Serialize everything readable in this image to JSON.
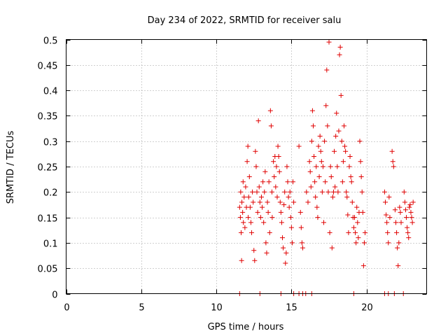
{
  "chart_data": {
    "type": "scatter",
    "title": "Day 234 of 2022, SRMTID for receiver salu",
    "xlabel": "GPS time / hours",
    "ylabel": "SRMTID / TECUs",
    "xlim": [
      0,
      24
    ],
    "ylim": [
      0,
      0.5
    ],
    "xticks": [
      0,
      5,
      10,
      15,
      20
    ],
    "yticks": [
      0,
      0.05,
      0.1,
      0.15,
      0.2,
      0.25,
      0.3,
      0.35,
      0.4,
      0.45,
      0.5
    ],
    "xtick_labels": [
      "0",
      "5",
      "10",
      "15",
      "20"
    ],
    "ytick_labels": [
      "0",
      "0.05",
      "0.1",
      "0.15",
      "0.2",
      "0.25",
      "0.3",
      "0.35",
      "0.4",
      "0.45",
      "0.5"
    ],
    "grid": true,
    "marker": "+",
    "color": "#e00000",
    "series": [
      {
        "name": "SRMTID",
        "points": [
          [
            11.55,
            0.17
          ],
          [
            11.6,
            0.15
          ],
          [
            11.62,
            0.2
          ],
          [
            11.65,
            0.12
          ],
          [
            11.68,
            0.065
          ],
          [
            11.7,
            0.18
          ],
          [
            11.75,
            0.16
          ],
          [
            11.78,
            0.22
          ],
          [
            11.8,
            0.14
          ],
          [
            11.85,
            0.19
          ],
          [
            11.9,
            0.13
          ],
          [
            11.95,
            0.21
          ],
          [
            12.0,
            0.17
          ],
          [
            12.05,
            0.26
          ],
          [
            12.1,
            0.29
          ],
          [
            12.12,
            0.15
          ],
          [
            12.15,
            0.19
          ],
          [
            12.2,
            0.23
          ],
          [
            12.25,
            0.17
          ],
          [
            12.3,
            0.14
          ],
          [
            12.35,
            0.12
          ],
          [
            12.4,
            0.2
          ],
          [
            12.45,
            0.18
          ],
          [
            12.5,
            0.085
          ],
          [
            12.55,
            0.065
          ],
          [
            12.6,
            0.28
          ],
          [
            12.65,
            0.25
          ],
          [
            12.7,
            0.2
          ],
          [
            12.75,
            0.16
          ],
          [
            12.8,
            0.34
          ],
          [
            12.85,
            0.21
          ],
          [
            12.9,
            0.18
          ],
          [
            12.95,
            0.15
          ],
          [
            13.0,
            0.19
          ],
          [
            13.05,
            0.17
          ],
          [
            13.1,
            0.22
          ],
          [
            13.15,
            0.14
          ],
          [
            13.2,
            0.2
          ],
          [
            13.25,
            0.24
          ],
          [
            13.3,
            0.1
          ],
          [
            13.35,
            0.08
          ],
          [
            13.4,
            0.18
          ],
          [
            13.45,
            0.16
          ],
          [
            13.5,
            0.22
          ],
          [
            13.55,
            0.12
          ],
          [
            13.6,
            0.36
          ],
          [
            13.65,
            0.33
          ],
          [
            13.7,
            0.2
          ],
          [
            13.72,
            0.15
          ],
          [
            13.8,
            0.26
          ],
          [
            13.85,
            0.23
          ],
          [
            13.9,
            0.27
          ],
          [
            13.95,
            0.21
          ],
          [
            14.0,
            0.25
          ],
          [
            14.05,
            0.19
          ],
          [
            14.1,
            0.29
          ],
          [
            14.15,
            0.27
          ],
          [
            14.2,
            0.24
          ],
          [
            14.25,
            0.18
          ],
          [
            14.3,
            0.16
          ],
          [
            14.35,
            0.14
          ],
          [
            14.4,
            0.11
          ],
          [
            14.45,
            0.09
          ],
          [
            14.5,
            0.175
          ],
          [
            14.55,
            0.2
          ],
          [
            14.6,
            0.06
          ],
          [
            14.65,
            0.08
          ],
          [
            14.7,
            0.25
          ],
          [
            14.75,
            0.22
          ],
          [
            14.8,
            0.19
          ],
          [
            14.85,
            0.17
          ],
          [
            14.9,
            0.2
          ],
          [
            14.95,
            0.15
          ],
          [
            15.0,
            0.13
          ],
          [
            15.05,
            0.1
          ],
          [
            15.1,
            0.22
          ],
          [
            15.15,
            0.18
          ],
          [
            15.5,
            0.29
          ],
          [
            15.6,
            0.16
          ],
          [
            15.65,
            0.13
          ],
          [
            15.7,
            0.1
          ],
          [
            15.75,
            0.09
          ],
          [
            16.0,
            0.2
          ],
          [
            16.1,
            0.18
          ],
          [
            16.2,
            0.26
          ],
          [
            16.25,
            0.24
          ],
          [
            16.3,
            0.21
          ],
          [
            16.35,
            0.3
          ],
          [
            16.4,
            0.36
          ],
          [
            16.45,
            0.33
          ],
          [
            16.5,
            0.27
          ],
          [
            16.55,
            0.22
          ],
          [
            16.6,
            0.19
          ],
          [
            16.65,
            0.25
          ],
          [
            16.7,
            0.17
          ],
          [
            16.75,
            0.15
          ],
          [
            16.8,
            0.29
          ],
          [
            16.85,
            0.23
          ],
          [
            16.9,
            0.31
          ],
          [
            16.95,
            0.28
          ],
          [
            17.0,
            0.26
          ],
          [
            17.05,
            0.2
          ],
          [
            17.1,
            0.25
          ],
          [
            17.15,
            0.14
          ],
          [
            17.2,
            0.3
          ],
          [
            17.25,
            0.22
          ],
          [
            17.3,
            0.37
          ],
          [
            17.35,
            0.44
          ],
          [
            17.4,
            0.33
          ],
          [
            17.45,
            0.2
          ],
          [
            17.5,
            0.495
          ],
          [
            17.55,
            0.12
          ],
          [
            17.6,
            0.25
          ],
          [
            17.65,
            0.23
          ],
          [
            17.7,
            0.09
          ],
          [
            17.75,
            0.19
          ],
          [
            17.8,
            0.2
          ],
          [
            17.85,
            0.28
          ],
          [
            17.9,
            0.21
          ],
          [
            17.95,
            0.31
          ],
          [
            18.0,
            0.355
          ],
          [
            18.05,
            0.25
          ],
          [
            18.1,
            0.2
          ],
          [
            18.15,
            0.32
          ],
          [
            18.2,
            0.47
          ],
          [
            18.25,
            0.485
          ],
          [
            18.3,
            0.39
          ],
          [
            18.35,
            0.3
          ],
          [
            18.4,
            0.22
          ],
          [
            18.45,
            0.26
          ],
          [
            18.5,
            0.33
          ],
          [
            18.55,
            0.29
          ],
          [
            18.6,
            0.28
          ],
          [
            18.65,
            0.2
          ],
          [
            18.7,
            0.19
          ],
          [
            18.75,
            0.155
          ],
          [
            18.8,
            0.12
          ],
          [
            18.85,
            0.25
          ],
          [
            18.9,
            0.27
          ],
          [
            18.95,
            0.23
          ],
          [
            19.0,
            0.22
          ],
          [
            19.05,
            0.18
          ],
          [
            19.1,
            0.15
          ],
          [
            19.15,
            0.13
          ],
          [
            19.2,
            0.15
          ],
          [
            19.25,
            0.12
          ],
          [
            19.3,
            0.1
          ],
          [
            19.35,
            0.17
          ],
          [
            19.4,
            0.14
          ],
          [
            19.45,
            0.11
          ],
          [
            19.5,
            0.16
          ],
          [
            19.55,
            0.3
          ],
          [
            19.6,
            0.26
          ],
          [
            19.65,
            0.23
          ],
          [
            19.7,
            0.2
          ],
          [
            19.75,
            0.16
          ],
          [
            19.8,
            0.055
          ],
          [
            19.85,
            0.1
          ],
          [
            19.9,
            0.12
          ],
          [
            21.2,
            0.2
          ],
          [
            21.25,
            0.18
          ],
          [
            21.3,
            0.155
          ],
          [
            21.35,
            0.14
          ],
          [
            21.4,
            0.12
          ],
          [
            21.45,
            0.1
          ],
          [
            21.5,
            0.19
          ],
          [
            21.55,
            0.15
          ],
          [
            21.7,
            0.28
          ],
          [
            21.75,
            0.26
          ],
          [
            21.8,
            0.25
          ],
          [
            21.9,
            0.165
          ],
          [
            21.95,
            0.14
          ],
          [
            22.0,
            0.12
          ],
          [
            22.05,
            0.09
          ],
          [
            22.1,
            0.055
          ],
          [
            22.15,
            0.1
          ],
          [
            22.2,
            0.17
          ],
          [
            22.25,
            0.16
          ],
          [
            22.3,
            0.14
          ],
          [
            22.5,
            0.2
          ],
          [
            22.55,
            0.18
          ],
          [
            22.6,
            0.165
          ],
          [
            22.65,
            0.15
          ],
          [
            22.7,
            0.13
          ],
          [
            22.75,
            0.12
          ],
          [
            22.8,
            0.11
          ],
          [
            22.85,
            0.17
          ],
          [
            22.9,
            0.175
          ],
          [
            22.95,
            0.16
          ],
          [
            23.0,
            0.15
          ],
          [
            23.05,
            0.14
          ],
          [
            23.1,
            0.18
          ],
          [
            11.55,
            0.0
          ],
          [
            12.9,
            0.0
          ],
          [
            14.3,
            0.0
          ],
          [
            15.15,
            0.0
          ],
          [
            15.5,
            0.0
          ],
          [
            15.75,
            0.0
          ],
          [
            15.95,
            0.0
          ],
          [
            16.35,
            0.0
          ],
          [
            19.15,
            0.0
          ],
          [
            21.2,
            0.0
          ],
          [
            21.45,
            0.0
          ],
          [
            21.85,
            0.0
          ],
          [
            22.45,
            0.0
          ]
        ]
      }
    ]
  }
}
